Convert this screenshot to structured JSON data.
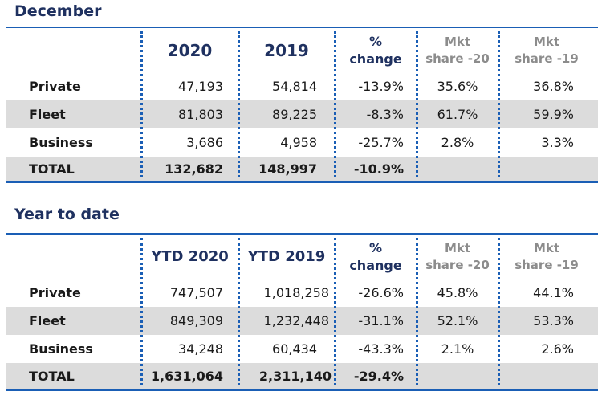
{
  "december": {
    "title": "December",
    "headers": {
      "y2020": "2020",
      "y2019": "2019",
      "pct_line1": "%",
      "pct_line2": "change",
      "mkt20_line1": "Mkt",
      "mkt20_line2": "share -20",
      "mkt19_line1": "Mkt",
      "mkt19_line2": "share -19"
    },
    "rows": [
      {
        "label": "Private",
        "v2020": "47,193",
        "v2019": "54,814",
        "change": "-13.9%",
        "share20": "35.6%",
        "share19": "36.8%"
      },
      {
        "label": "Fleet",
        "v2020": "81,803",
        "v2019": "89,225",
        "change": "-8.3%",
        "share20": "61.7%",
        "share19": "59.9%"
      },
      {
        "label": "Business",
        "v2020": "3,686",
        "v2019": "4,958",
        "change": "-25.7%",
        "share20": "2.8%",
        "share19": "3.3%"
      }
    ],
    "total": {
      "label": "TOTAL",
      "v2020": "132,682",
      "v2019": "148,997",
      "change": "-10.9%"
    }
  },
  "ytd": {
    "title": "Year to date",
    "headers": {
      "y2020": "YTD 2020",
      "y2019": "YTD 2019",
      "pct_line1": "%",
      "pct_line2": "change",
      "mkt20_line1": "Mkt",
      "mkt20_line2": "share -20",
      "mkt19_line1": "Mkt",
      "mkt19_line2": "share -19"
    },
    "rows": [
      {
        "label": "Private",
        "v2020": "747,507",
        "v2019": "1,018,258",
        "change": "-26.6%",
        "share20": "45.8%",
        "share19": "44.1%"
      },
      {
        "label": "Fleet",
        "v2020": "849,309",
        "v2019": "1,232,448",
        "change": "-31.1%",
        "share20": "52.1%",
        "share19": "53.3%"
      },
      {
        "label": "Business",
        "v2020": "34,248",
        "v2019": "60,434",
        "change": "-43.3%",
        "share20": "2.1%",
        "share19": "2.6%"
      }
    ],
    "total": {
      "label": "TOTAL",
      "v2020": "1,631,064",
      "v2019": "2,311,140",
      "change": "-29.4%"
    }
  },
  "colors": {
    "accent": "#1a5eb5",
    "title": "#1f3160",
    "shade": "#dcdcdc",
    "muted": "#8c8c8c"
  }
}
